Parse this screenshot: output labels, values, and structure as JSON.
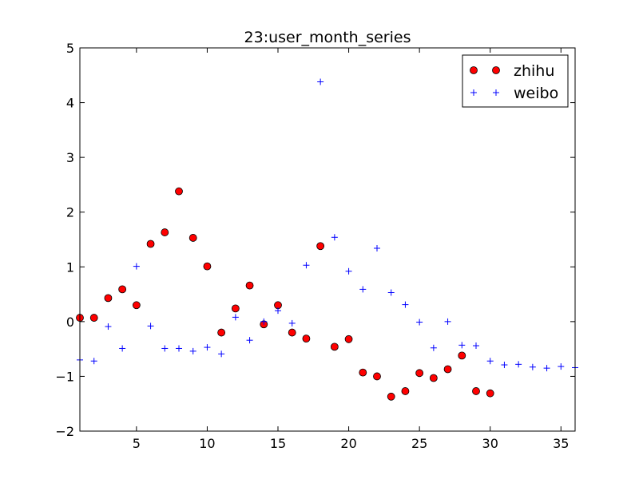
{
  "chart_data": {
    "type": "scatter",
    "title": "23:user_month_series",
    "xlabel": "",
    "ylabel": "",
    "xlim": [
      1,
      36
    ],
    "ylim": [
      -2,
      5
    ],
    "xticks": [
      5,
      10,
      15,
      20,
      25,
      30,
      35
    ],
    "yticks": [
      -2,
      -1,
      0,
      1,
      2,
      3,
      4,
      5
    ],
    "grid": false,
    "legend_position": "top-right",
    "series": [
      {
        "name": "zhihu",
        "marker": "circle",
        "color": "#ff0000",
        "edge_color": "#000000",
        "x": [
          1,
          2,
          3,
          4,
          5,
          6,
          7,
          8,
          9,
          10,
          11,
          12,
          13,
          14,
          15,
          16,
          17,
          18,
          19,
          20,
          21,
          22,
          23,
          24,
          25,
          26,
          27,
          28,
          29,
          30
        ],
        "y": [
          0.07,
          0.07,
          0.43,
          0.59,
          0.3,
          1.42,
          1.63,
          2.38,
          1.53,
          1.01,
          -0.2,
          0.24,
          0.66,
          -0.05,
          0.3,
          -0.2,
          -0.31,
          1.38,
          -0.46,
          -0.32,
          -0.93,
          -1.0,
          -1.37,
          -1.27,
          -0.94,
          -1.03,
          -0.87,
          -0.62,
          -1.27,
          -1.31
        ]
      },
      {
        "name": "weibo",
        "marker": "plus",
        "color": "#0000ff",
        "x": [
          1,
          2,
          3,
          4,
          5,
          6,
          7,
          8,
          9,
          10,
          11,
          12,
          13,
          14,
          15,
          16,
          17,
          18,
          19,
          20,
          21,
          22,
          23,
          24,
          25,
          26,
          27,
          28,
          29,
          30,
          31,
          32,
          33,
          34,
          35,
          36
        ],
        "y": [
          -0.7,
          -0.72,
          -0.09,
          -0.49,
          1.01,
          -0.08,
          -0.49,
          -0.49,
          -0.54,
          -0.47,
          -0.59,
          0.08,
          -0.34,
          0.0,
          0.2,
          -0.03,
          1.03,
          4.38,
          1.54,
          0.92,
          0.59,
          1.34,
          0.53,
          0.31,
          -0.01,
          -0.48,
          0.0,
          -0.43,
          -0.44,
          -0.72,
          -0.79,
          -0.78,
          -0.83,
          -0.85,
          -0.82,
          -0.84
        ]
      }
    ]
  }
}
